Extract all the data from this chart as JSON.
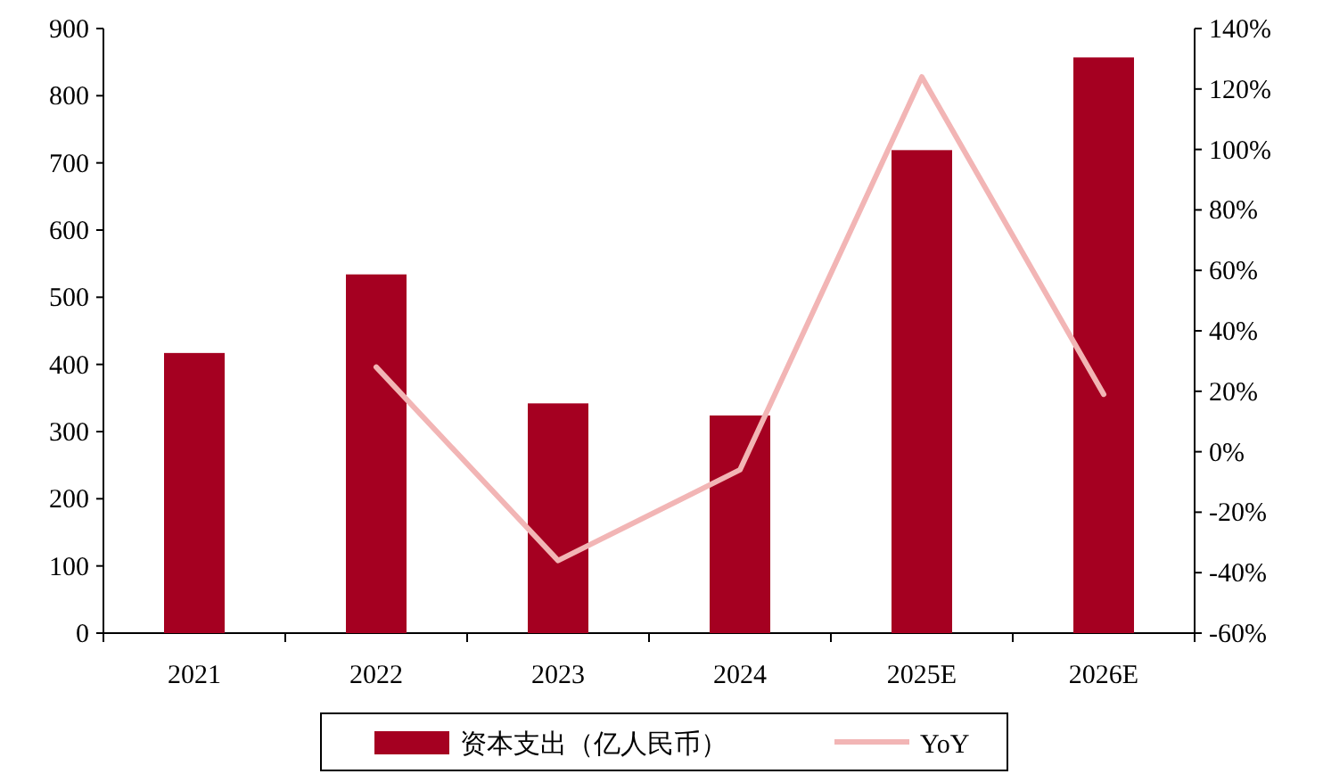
{
  "chart_data": {
    "type": "bar",
    "categories": [
      "2021",
      "2022",
      "2023",
      "2024",
      "2025E",
      "2026E"
    ],
    "series": [
      {
        "name": "资本支出（亿人民币）",
        "color": "#a50021",
        "values": [
          417,
          534,
          342,
          324,
          719,
          857
        ]
      },
      {
        "name": "YoY",
        "type": "line",
        "axis": "y2",
        "color": "#f2b5b5",
        "values": [
          null,
          28,
          -36,
          -6,
          124,
          19
        ]
      }
    ],
    "ylim": [
      0,
      900
    ],
    "yticks": [
      0,
      100,
      200,
      300,
      400,
      500,
      600,
      700,
      800,
      900
    ],
    "y2lim": [
      -60,
      140
    ],
    "y2ticks": [
      {
        "value": -60,
        "label": "-60%"
      },
      {
        "value": -40,
        "label": "-40%"
      },
      {
        "value": -20,
        "label": "-20%"
      },
      {
        "value": 0,
        "label": "0%"
      },
      {
        "value": 20,
        "label": "20%"
      },
      {
        "value": 40,
        "label": "40%"
      },
      {
        "value": 60,
        "label": "60%"
      },
      {
        "value": 80,
        "label": "80%"
      },
      {
        "value": 100,
        "label": "100%"
      },
      {
        "value": 120,
        "label": "120%"
      },
      {
        "value": 140,
        "label": "140%"
      }
    ],
    "legend": "bottom"
  }
}
